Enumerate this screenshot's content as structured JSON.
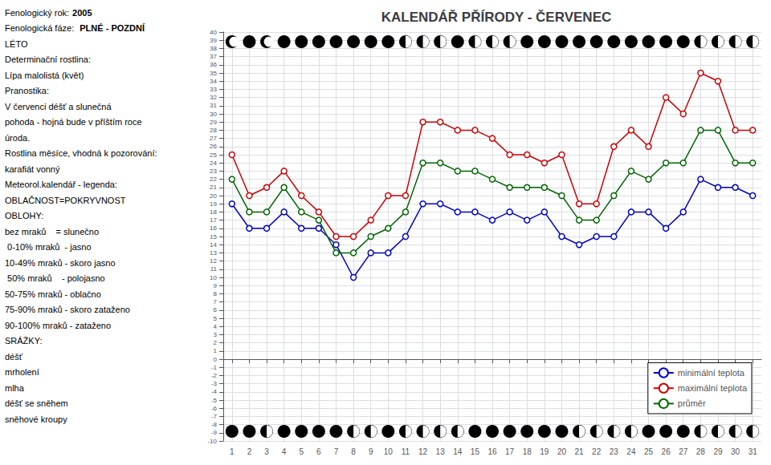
{
  "chart_data": {
    "type": "line",
    "title": "KALENDÁŘ PŘÍRODY - ČERVENEC",
    "x": [
      1,
      2,
      3,
      4,
      5,
      6,
      7,
      8,
      9,
      10,
      11,
      12,
      13,
      14,
      15,
      16,
      17,
      18,
      19,
      20,
      21,
      22,
      23,
      24,
      25,
      26,
      27,
      28,
      29,
      30,
      31
    ],
    "series": [
      {
        "name": "minimální teplota",
        "color": "#0000cc",
        "marker": "circle",
        "values": [
          19,
          16,
          16,
          18,
          16,
          16,
          14,
          10,
          13,
          13,
          15,
          19,
          19,
          18,
          18,
          17,
          18,
          17,
          18,
          15,
          14,
          15,
          15,
          18,
          18,
          16,
          18,
          22,
          21,
          21,
          20
        ]
      },
      {
        "name": "maximální teplota",
        "color": "#cc0000",
        "marker": "circle",
        "values": [
          25,
          20,
          21,
          23,
          20,
          18,
          15,
          15,
          17,
          20,
          20,
          29,
          29,
          28,
          28,
          27,
          25,
          25,
          24,
          25,
          19,
          19,
          26,
          28,
          26,
          32,
          30,
          35,
          34,
          28,
          28
        ]
      },
      {
        "name": "průměr",
        "color": "#006600",
        "marker": "circle",
        "values": [
          22,
          18,
          18,
          21,
          18,
          17,
          13,
          13,
          15,
          16,
          18,
          24,
          24,
          23,
          23,
          22,
          21,
          21,
          21,
          20,
          17,
          17,
          20,
          23,
          22,
          24,
          24,
          28,
          28,
          24,
          24
        ]
      }
    ],
    "xlim": [
      0.5,
      31.5
    ],
    "xticks": [
      1,
      2,
      3,
      4,
      5,
      6,
      7,
      8,
      9,
      10,
      11,
      12,
      13,
      14,
      15,
      16,
      17,
      18,
      19,
      20,
      21,
      22,
      23,
      24,
      25,
      26,
      27,
      28,
      29,
      30,
      31
    ],
    "ylim": [
      -10,
      40
    ],
    "yticks": [
      -10,
      -9,
      -8,
      -7,
      -6,
      -5,
      -4,
      -3,
      -2,
      -1,
      0,
      1,
      2,
      3,
      4,
      5,
      6,
      7,
      8,
      9,
      10,
      11,
      12,
      13,
      14,
      15,
      16,
      17,
      18,
      19,
      20,
      21,
      22,
      23,
      24,
      25,
      26,
      27,
      28,
      29,
      30,
      31,
      32,
      33,
      34,
      35,
      36,
      37,
      38,
      39,
      40
    ],
    "grid": true,
    "legend": "lower right",
    "top_clouds": [
      1,
      0,
      1,
      0,
      0,
      0,
      0,
      0,
      0,
      0,
      2,
      2,
      2,
      0,
      2,
      2,
      2,
      0,
      0,
      0,
      0,
      0,
      0,
      0,
      0,
      0,
      0,
      2,
      2,
      2,
      2
    ],
    "bot_clouds": [
      0,
      0,
      2,
      0,
      0,
      0,
      0,
      2,
      2,
      0,
      2,
      2,
      2,
      2,
      0,
      0,
      0,
      0,
      0,
      0,
      2,
      2,
      2,
      2,
      0,
      0,
      0,
      2,
      2,
      2,
      2
    ],
    "annotations": [
      [
        "Fenologický rok:",
        "2005"
      ],
      [
        "Fenologická fáze: ",
        "PLNÉ - POZDNÍ"
      ],
      [
        "LÉTO"
      ],
      [
        "Determinační rostlina: "
      ],
      [
        "Lípa malolistá (květ)"
      ],
      [
        "Pranostika: "
      ],
      [
        "V červenci déšť a slunečná"
      ],
      [
        "pohoda - hojná bude v příštím roce"
      ],
      [
        "úroda."
      ],
      [
        "Rostlina měsíce, vhodná k pozorování:"
      ],
      [
        "karafiát vonný"
      ],
      [
        "Meteorol.kalendář - legenda:"
      ],
      [
        "OBLAČNOST=POKRYVNOST"
      ],
      [
        "OBLOHY:"
      ],
      [
        "bez mraků    = slunečno"
      ],
      [
        " 0-10% mraků  - jasno"
      ],
      [
        "10-49% mraků - skoro jasno"
      ],
      [
        " 50% mraků    - polojasno"
      ],
      [
        "50-75% mraků - oblačno"
      ],
      [
        "75-90% mraků - skoro zataženo"
      ],
      [
        "90-100% mraků - zataženo"
      ],
      [
        "SRÁŽKY:"
      ],
      [
        "déšť"
      ],
      [
        "mrholení"
      ],
      [
        "mlha"
      ],
      [
        "déšť se sněhem"
      ],
      [
        "sněhové kroupy"
      ]
    ]
  }
}
